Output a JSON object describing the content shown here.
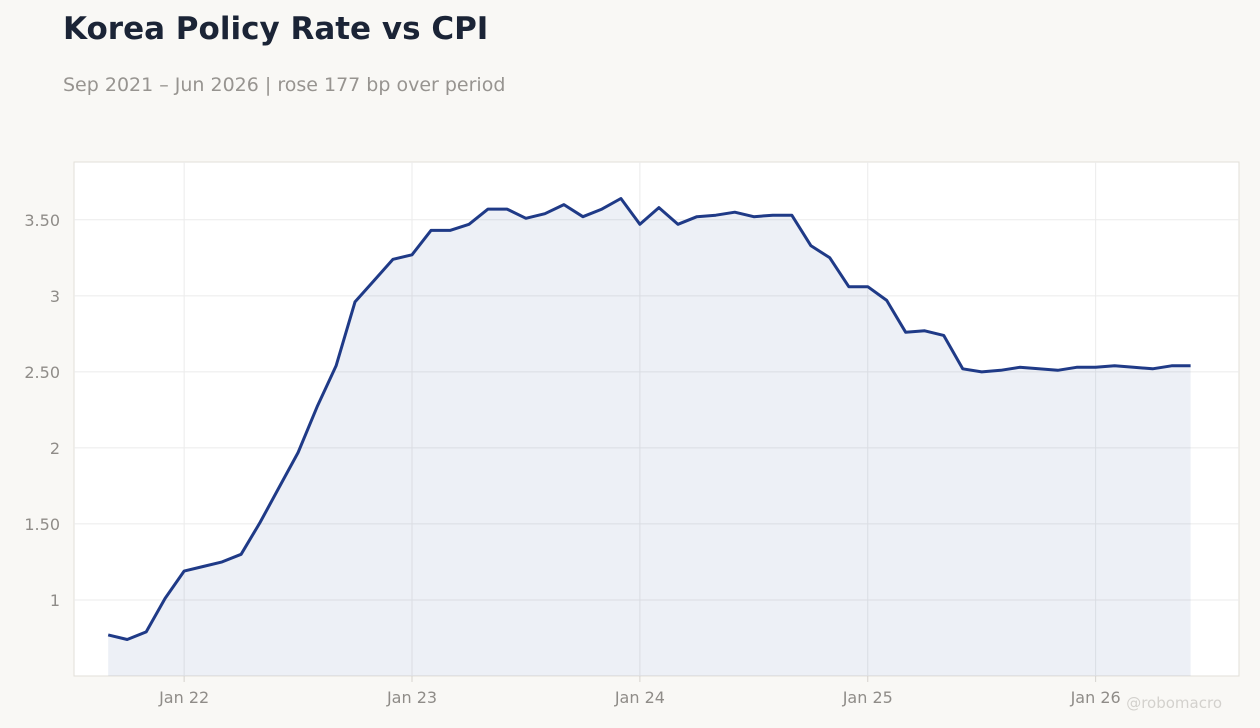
{
  "header": {
    "title": "Korea Policy Rate vs CPI",
    "subtitle": "Sep 2021 – Jun 2026 | rose 177 bp over period"
  },
  "watermark": "@robomacro",
  "colors": {
    "line": "#1f3a87",
    "fill": "#1f3a87",
    "grid": "#ebebeb",
    "tick_text": "#8f8c88",
    "background": "#f9f8f5",
    "plot_background": "#ffffff"
  },
  "chart_data": {
    "type": "area",
    "title": "Korea Policy Rate vs CPI",
    "subtitle": "Sep 2021 – Jun 2026 | rose 177 bp over period",
    "xlabel": "",
    "ylabel": "",
    "x": [
      "2021-09",
      "2021-10",
      "2021-11",
      "2021-12",
      "2022-01",
      "2022-02",
      "2022-03",
      "2022-04",
      "2022-05",
      "2022-06",
      "2022-07",
      "2022-08",
      "2022-09",
      "2022-10",
      "2022-11",
      "2022-12",
      "2023-01",
      "2023-02",
      "2023-03",
      "2023-04",
      "2023-05",
      "2023-06",
      "2023-07",
      "2023-08",
      "2023-09",
      "2023-10",
      "2023-11",
      "2023-12",
      "2024-01",
      "2024-02",
      "2024-03",
      "2024-04",
      "2024-05",
      "2024-06",
      "2024-07",
      "2024-08",
      "2024-09",
      "2024-10",
      "2024-11",
      "2024-12",
      "2025-01",
      "2025-02",
      "2025-03",
      "2025-04",
      "2025-05",
      "2025-06",
      "2025-07",
      "2025-08",
      "2025-09",
      "2025-10",
      "2025-11",
      "2025-12",
      "2026-01",
      "2026-02",
      "2026-03",
      "2026-04",
      "2026-05",
      "2026-06"
    ],
    "series": [
      {
        "values": [
          0.77,
          0.74,
          0.79,
          1.01,
          1.19,
          1.22,
          1.25,
          1.3,
          1.51,
          1.74,
          1.97,
          2.27,
          2.54,
          2.96,
          3.1,
          3.24,
          3.27,
          3.43,
          3.43,
          3.47,
          3.57,
          3.57,
          3.51,
          3.54,
          3.6,
          3.52,
          3.57,
          3.64,
          3.47,
          3.58,
          3.47,
          3.52,
          3.53,
          3.55,
          3.52,
          3.53,
          3.53,
          3.33,
          3.25,
          3.06,
          3.06,
          2.97,
          2.76,
          2.77,
          2.74,
          2.52,
          2.5,
          2.51,
          2.53,
          2.52,
          2.51,
          2.53,
          2.53,
          2.54,
          2.53,
          2.52,
          2.54,
          2.54
        ]
      }
    ],
    "ylim": [
      0.5,
      3.88
    ],
    "y_ticks": [
      1,
      1.5,
      2,
      2.5,
      3,
      3.5
    ],
    "y_tick_labels": [
      "1",
      "1.50",
      "2",
      "2.50",
      "3",
      "3.50"
    ],
    "x_ticks": [
      "2022-01",
      "2023-01",
      "2024-01",
      "2025-01",
      "2026-01"
    ],
    "x_tick_labels": [
      "Jan 22",
      "Jan 23",
      "Jan 24",
      "Jan 25",
      "Jan 26"
    ],
    "grid": true,
    "legend": "none"
  }
}
